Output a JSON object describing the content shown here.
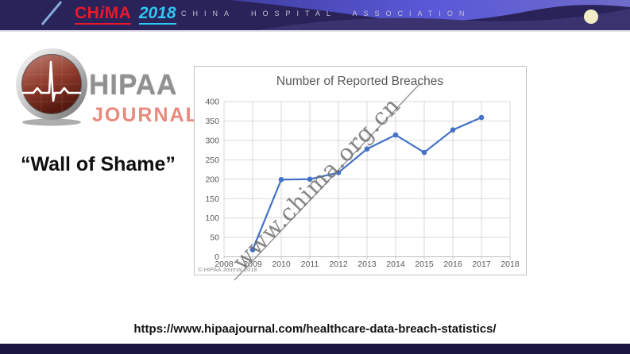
{
  "header": {
    "chima_logo": {
      "part1": "CH",
      "part2": "i",
      "part3": "MA",
      "year": "2018"
    },
    "association_label": "CHINA HOSPITAL ASSOCIATION"
  },
  "logo": {
    "title": "HIPAA",
    "subtitle": "JOURNAL"
  },
  "caption": "“Wall of Shame”",
  "chart_data": {
    "type": "line",
    "title": "Number of Reported Breaches",
    "categories": [
      "2008",
      "2009",
      "2010",
      "2011",
      "2012",
      "2013",
      "2014",
      "2015",
      "2016",
      "2017",
      "2018"
    ],
    "series": [
      {
        "name": "Reported Breaches",
        "x": [
          "2009",
          "2010",
          "2011",
          "2012",
          "2013",
          "2014",
          "2015",
          "2016",
          "2017"
        ],
        "values": [
          18,
          199,
          200,
          217,
          278,
          314,
          269,
          327,
          359
        ]
      }
    ],
    "xlabel": "",
    "ylabel": "",
    "ylim": [
      0,
      400
    ],
    "ytick_step": 50,
    "grid": true,
    "legend": "none",
    "copyright": "© HIPAA Journal 2018",
    "line_color": "#4472c4",
    "grid_color": "#d9d9d9",
    "axis_color": "#bfbfbf",
    "text_color": "#595959"
  },
  "watermark": {
    "text": "www.chima.org.cn"
  },
  "footer": {
    "url": "https://www.hipaajournal.com/healthcare-data-breach-statistics/"
  },
  "colors": {
    "chima_red": "#e8192c",
    "chima_cyan": "#2fc7f2",
    "header_navy": "#29235a",
    "moon_cream": "#f2ecc7",
    "footer_navy": "#1b1642"
  }
}
